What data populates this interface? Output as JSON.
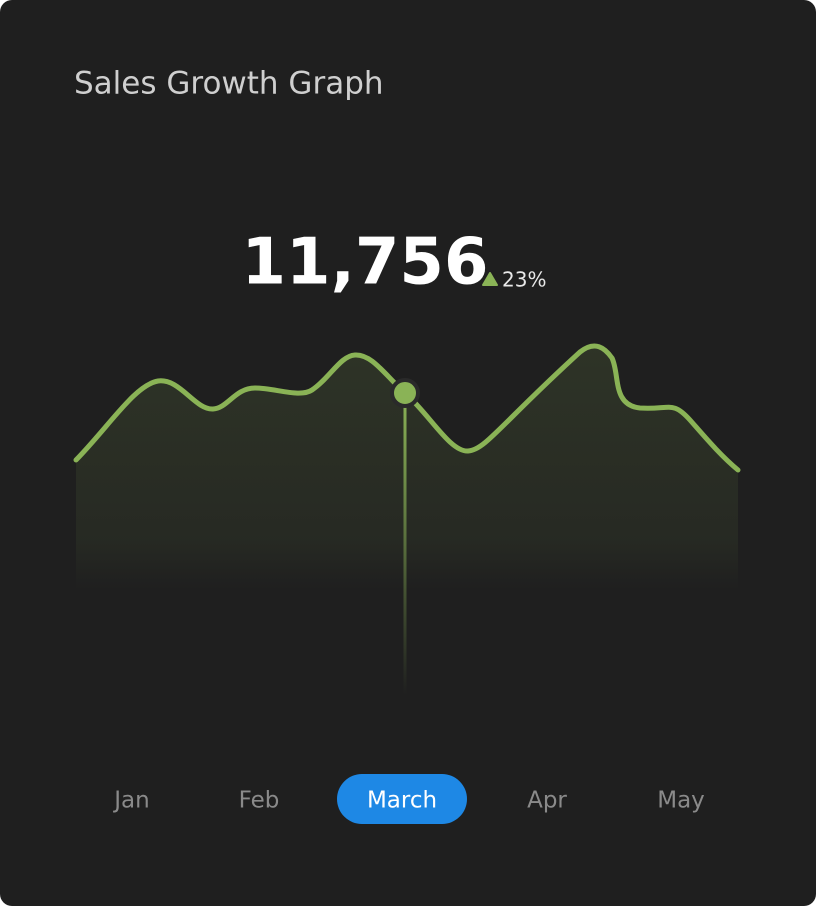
{
  "card": {
    "title": "Sales Growth Graph",
    "value": "11,756",
    "change": "23%",
    "months": [
      "Jan",
      "Feb",
      "March",
      "Apr",
      "May"
    ],
    "selected": 2
  }
}
